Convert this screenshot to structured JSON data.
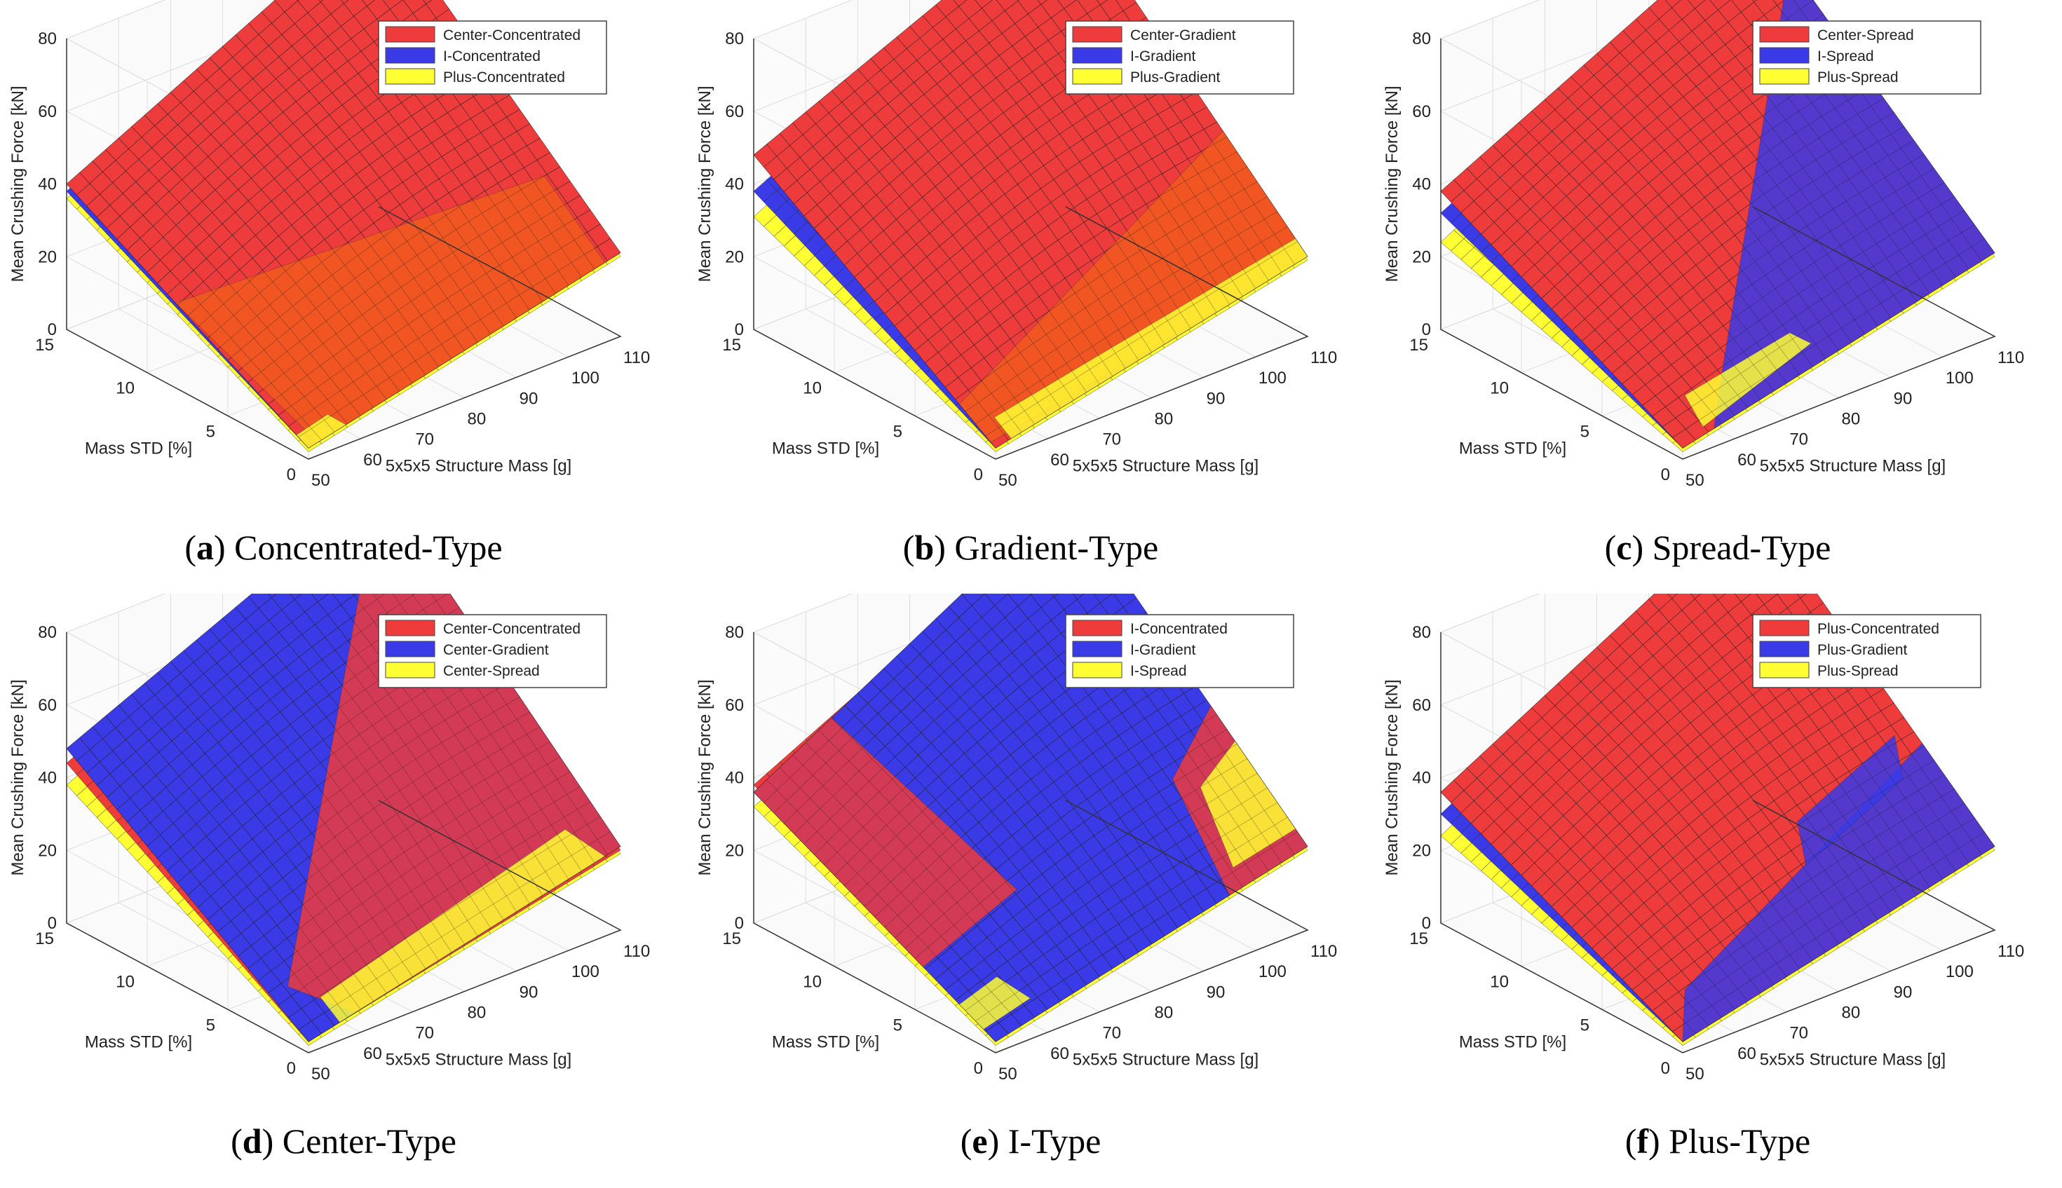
{
  "colors": {
    "red": "#ee3b3b",
    "blue": "#3a3ae6",
    "yellow": "#ffff33",
    "grid": "#dddddd",
    "axis": "#333333"
  },
  "chart_data": [
    {
      "type": "surface3d",
      "panel_letter": "a",
      "caption_text": "Concentrated-Type",
      "xlabel": "5x5x5 Structure Mass [g]",
      "ylabel": "Mass STD [%]",
      "zlabel": "Mean Crushing Force [kN]",
      "x_ticks": [
        "50",
        "60",
        "70",
        "80",
        "90",
        "100",
        "110"
      ],
      "y_ticks": [
        "0",
        "5",
        "10",
        "15"
      ],
      "z_ticks": [
        "0",
        "20",
        "40",
        "60",
        "80"
      ],
      "xlim": [
        50,
        110
      ],
      "ylim": [
        0,
        15
      ],
      "zlim": [
        0,
        80
      ],
      "legend": [
        "Center-Concentrated",
        "I-Concentrated",
        "Plus-Concentrated"
      ],
      "series": [
        {
          "name": "Center-Concentrated",
          "color": "red",
          "corner_values": {
            "m50_s0": 3,
            "m110_s0": 23,
            "m50_s15": 40,
            "m110_s15": 82
          }
        },
        {
          "name": "I-Concentrated",
          "color": "blue",
          "corner_values": {
            "m50_s0": 3,
            "m110_s0": 23,
            "m50_s15": 38,
            "m110_s15": 80
          }
        },
        {
          "name": "Plus-Concentrated",
          "color": "yellow",
          "corner_values": {
            "m50_s0": 2,
            "m110_s0": 22,
            "m50_s15": 36,
            "m110_s15": 76
          }
        }
      ],
      "regions": [
        {
          "color": "orange",
          "quad": [
            [
              0.03,
              0.0
            ],
            [
              0.95,
              0.0
            ],
            [
              0.95,
              0.25
            ],
            [
              0.0,
              0.55
            ]
          ]
        },
        {
          "color": "yellow",
          "quad": [
            [
              0.0,
              0.0
            ],
            [
              0.12,
              0.0
            ],
            [
              0.1,
              0.05
            ],
            [
              0.0,
              0.05
            ]
          ]
        }
      ]
    },
    {
      "type": "surface3d",
      "panel_letter": "b",
      "caption_text": "Gradient-Type",
      "xlabel": "5x5x5 Structure Mass [g]",
      "ylabel": "Mass STD [%]",
      "zlabel": "Mean Crushing Force [kN]",
      "x_ticks": [
        "50",
        "60",
        "70",
        "80",
        "90",
        "100",
        "110"
      ],
      "y_ticks": [
        "0",
        "5",
        "10",
        "15"
      ],
      "z_ticks": [
        "0",
        "20",
        "40",
        "60",
        "80"
      ],
      "xlim": [
        50,
        110
      ],
      "ylim": [
        0,
        15
      ],
      "zlim": [
        0,
        80
      ],
      "legend": [
        "Center-Gradient",
        "I-Gradient",
        "Plus-Gradient"
      ],
      "series": [
        {
          "name": "Center-Gradient",
          "color": "red",
          "corner_values": {
            "m50_s0": 3,
            "m110_s0": 22,
            "m50_s15": 48,
            "m110_s15": 85
          }
        },
        {
          "name": "I-Gradient",
          "color": "blue",
          "corner_values": {
            "m50_s0": 3,
            "m110_s0": 22,
            "m50_s15": 38,
            "m110_s15": 80
          }
        },
        {
          "name": "Plus-Gradient",
          "color": "yellow",
          "corner_values": {
            "m50_s0": 2,
            "m110_s0": 21,
            "m50_s15": 31,
            "m110_s15": 74
          }
        }
      ],
      "regions": [
        {
          "color": "orange",
          "quad": [
            [
              0.0,
              0.02
            ],
            [
              1.0,
              0.0
            ],
            [
              1.0,
              0.35
            ],
            [
              0.0,
              0.15
            ]
          ]
        },
        {
          "color": "yellow",
          "quad": [
            [
              0.05,
              0.0
            ],
            [
              1.0,
              0.0
            ],
            [
              1.0,
              0.05
            ],
            [
              0.05,
              0.07
            ]
          ]
        }
      ]
    },
    {
      "type": "surface3d",
      "panel_letter": "c",
      "caption_text": "Spread-Type",
      "xlabel": "5x5x5 Structure Mass [g]",
      "ylabel": "Mass STD [%]",
      "zlabel": "Mean Crushing Force [kN]",
      "x_ticks": [
        "50",
        "60",
        "70",
        "80",
        "90",
        "100",
        "110"
      ],
      "y_ticks": [
        "0",
        "5",
        "10",
        "15"
      ],
      "z_ticks": [
        "0",
        "20",
        "40",
        "60",
        "80"
      ],
      "xlim": [
        50,
        110
      ],
      "ylim": [
        0,
        15
      ],
      "zlim": [
        0,
        80
      ],
      "legend": [
        "Center-Spread",
        "I-Spread",
        "Plus-Spread"
      ],
      "series": [
        {
          "name": "Center-Spread",
          "color": "red",
          "corner_values": {
            "m50_s0": 3,
            "m110_s0": 23,
            "m50_s15": 38,
            "m110_s15": 80
          }
        },
        {
          "name": "I-Spread",
          "color": "blue",
          "corner_values": {
            "m50_s0": 3,
            "m110_s0": 23,
            "m50_s15": 32,
            "m110_s15": 76
          }
        },
        {
          "name": "Plus-Spread",
          "color": "yellow",
          "corner_values": {
            "m50_s0": 2,
            "m110_s0": 22,
            "m50_s15": 24,
            "m110_s15": 70
          }
        }
      ],
      "regions": [
        {
          "color": "blue",
          "quad": [
            [
              0.1,
              0.0
            ],
            [
              1.0,
              0.0
            ],
            [
              1.0,
              0.85
            ],
            [
              0.2,
              0.1
            ]
          ]
        },
        {
          "color": "yellow",
          "quad": [
            [
              0.08,
              0.02
            ],
            [
              0.45,
              0.05
            ],
            [
              0.42,
              0.1
            ],
            [
              0.1,
              0.12
            ]
          ]
        }
      ]
    },
    {
      "type": "surface3d",
      "panel_letter": "d",
      "caption_text": "Center-Type",
      "xlabel": "5x5x5 Structure Mass [g]",
      "ylabel": "Mass STD [%]",
      "zlabel": "Mean Crushing Force [kN]",
      "x_ticks": [
        "50",
        "60",
        "70",
        "80",
        "90",
        "100",
        "110"
      ],
      "y_ticks": [
        "0",
        "5",
        "10",
        "15"
      ],
      "z_ticks": [
        "0",
        "20",
        "40",
        "60",
        "80"
      ],
      "xlim": [
        50,
        110
      ],
      "ylim": [
        0,
        15
      ],
      "zlim": [
        0,
        80
      ],
      "legend": [
        "Center-Concentrated",
        "Center-Gradient",
        "Center-Spread"
      ],
      "series": [
        {
          "name": "Center-Concentrated",
          "color": "red",
          "corner_values": {
            "m50_s0": 3,
            "m110_s0": 22,
            "m50_s15": 44,
            "m110_s15": 84
          }
        },
        {
          "name": "Center-Gradient",
          "color": "blue",
          "corner_values": {
            "m50_s0": 3,
            "m110_s0": 23,
            "m50_s15": 48,
            "m110_s15": 86
          }
        },
        {
          "name": "Center-Spread",
          "color": "yellow",
          "corner_values": {
            "m50_s0": 2,
            "m110_s0": 21,
            "m50_s15": 38,
            "m110_s15": 78
          }
        }
      ],
      "regions": [
        {
          "color": "red",
          "quad": [
            [
              0.15,
              0.0
            ],
            [
              1.0,
              0.0
            ],
            [
              1.0,
              1.0
            ],
            [
              0.05,
              0.15
            ]
          ]
        },
        {
          "color": "yellow",
          "quad": [
            [
              0.1,
              0.0
            ],
            [
              0.95,
              0.0
            ],
            [
              0.9,
              0.1
            ],
            [
              0.1,
              0.08
            ]
          ]
        }
      ]
    },
    {
      "type": "surface3d",
      "panel_letter": "e",
      "caption_text": "I-Type",
      "xlabel": "5x5x5 Structure Mass [g]",
      "ylabel": "Mass STD [%]",
      "zlabel": "Mean Crushing Force [kN]",
      "x_ticks": [
        "50",
        "60",
        "70",
        "80",
        "90",
        "100",
        "110"
      ],
      "y_ticks": [
        "0",
        "5",
        "10",
        "15"
      ],
      "z_ticks": [
        "0",
        "20",
        "40",
        "60",
        "80"
      ],
      "xlim": [
        50,
        110
      ],
      "ylim": [
        0,
        15
      ],
      "zlim": [
        0,
        80
      ],
      "legend": [
        "I-Concentrated",
        "I-Gradient",
        "I-Spread"
      ],
      "series": [
        {
          "name": "I-Concentrated",
          "color": "red",
          "corner_values": {
            "m50_s0": 3,
            "m110_s0": 23,
            "m50_s15": 38,
            "m110_s15": 80
          }
        },
        {
          "name": "I-Gradient",
          "color": "blue",
          "corner_values": {
            "m50_s0": 3,
            "m110_s0": 23,
            "m50_s15": 36,
            "m110_s15": 84
          }
        },
        {
          "name": "I-Spread",
          "color": "yellow",
          "corner_values": {
            "m50_s0": 2,
            "m110_s0": 22,
            "m50_s15": 32,
            "m110_s15": 74
          }
        }
      ],
      "regions": [
        {
          "color": "red",
          "quad": [
            [
              0.0,
              0.3
            ],
            [
              0.3,
              0.3
            ],
            [
              0.25,
              1.0
            ],
            [
              0.0,
              1.0
            ]
          ]
        },
        {
          "color": "red",
          "quad": [
            [
              0.75,
              0.0
            ],
            [
              1.0,
              0.0
            ],
            [
              1.0,
              0.4
            ],
            [
              0.8,
              0.3
            ]
          ]
        },
        {
          "color": "yellow",
          "quad": [
            [
              0.8,
              0.05
            ],
            [
              1.0,
              0.05
            ],
            [
              1.0,
              0.3
            ],
            [
              0.85,
              0.25
            ]
          ]
        },
        {
          "color": "yellow",
          "quad": [
            [
              0.0,
              0.05
            ],
            [
              0.15,
              0.05
            ],
            [
              0.12,
              0.15
            ],
            [
              0.0,
              0.15
            ]
          ]
        }
      ]
    },
    {
      "type": "surface3d",
      "panel_letter": "f",
      "caption_text": "Plus-Type",
      "xlabel": "5x5x5 Structure Mass [g]",
      "ylabel": "Mass STD [%]",
      "zlabel": "Mean Crushing Force [kN]",
      "x_ticks": [
        "50",
        "60",
        "70",
        "80",
        "90",
        "100",
        "110"
      ],
      "y_ticks": [
        "0",
        "5",
        "10",
        "15"
      ],
      "z_ticks": [
        "0",
        "20",
        "40",
        "60",
        "80"
      ],
      "xlim": [
        50,
        110
      ],
      "ylim": [
        0,
        15
      ],
      "zlim": [
        0,
        80
      ],
      "legend": [
        "Plus-Concentrated",
        "Plus-Gradient",
        "Plus-Spread"
      ],
      "series": [
        {
          "name": "Plus-Concentrated",
          "color": "red",
          "corner_values": {
            "m50_s0": 3,
            "m110_s0": 23,
            "m50_s15": 36,
            "m110_s15": 82
          }
        },
        {
          "name": "Plus-Gradient",
          "color": "blue",
          "corner_values": {
            "m50_s0": 3,
            "m110_s0": 23,
            "m50_s15": 30,
            "m110_s15": 78
          }
        },
        {
          "name": "Plus-Spread",
          "color": "yellow",
          "corner_values": {
            "m50_s0": 2,
            "m110_s0": 22,
            "m50_s15": 24,
            "m110_s15": 72
          }
        }
      ],
      "regions": [
        {
          "color": "blue",
          "quad": [
            [
              0.0,
              0.0
            ],
            [
              1.0,
              0.0
            ],
            [
              1.0,
              0.3
            ],
            [
              0.1,
              0.12
            ]
          ]
        },
        {
          "color": "blue",
          "quad": [
            [
              0.55,
              0.2
            ],
            [
              0.9,
              0.25
            ],
            [
              0.95,
              0.35
            ],
            [
              0.6,
              0.3
            ]
          ]
        }
      ]
    }
  ]
}
